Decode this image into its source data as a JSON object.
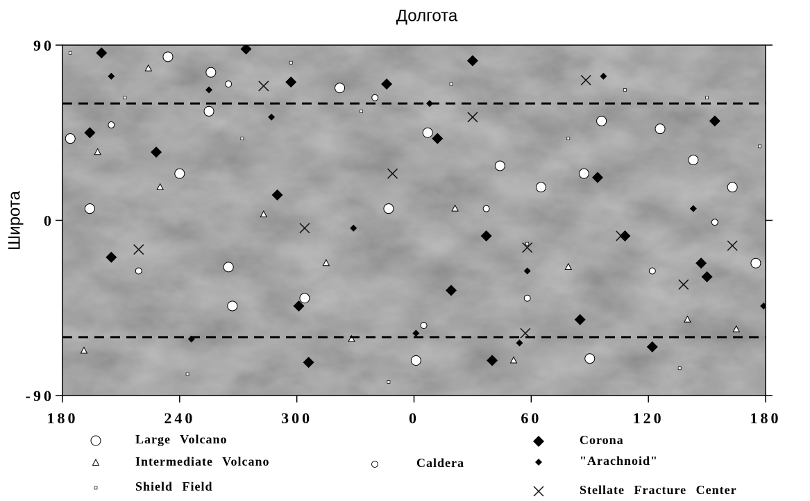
{
  "chart_data": {
    "type": "scatter",
    "title": "Долгота",
    "y_label": "Широта",
    "xlim": [
      180,
      540
    ],
    "xticks": [
      180,
      240,
      300,
      {
        "value": 360,
        "label": "0"
      },
      {
        "value": 420,
        "label": "60"
      },
      {
        "value": 480,
        "label": "120"
      },
      {
        "value": 540,
        "label": "180"
      }
    ],
    "ylim": [
      -90,
      90
    ],
    "yticks": [
      -90,
      0,
      90
    ],
    "hlines": [
      60,
      -60
    ],
    "series": [
      {
        "name": "Large Volcano",
        "marker": "circle",
        "color": "#ffffff",
        "x": [
          234,
          256,
          322,
          255,
          184,
          194,
          240,
          265,
          304,
          347,
          367,
          404,
          425,
          447,
          456,
          486,
          503,
          523,
          535,
          361,
          450,
          267
        ],
        "y": [
          84,
          76,
          68,
          56,
          42,
          6,
          24,
          -24,
          -40,
          6,
          45,
          28,
          17,
          24,
          51,
          47,
          31,
          17,
          -22,
          -72,
          -71,
          -44
        ]
      },
      {
        "name": "Intermediate Volcano",
        "marker": "triangle",
        "color": "#ffffff",
        "x": [
          224,
          198,
          230,
          283,
          315,
          328,
          381,
          411,
          439,
          500,
          525,
          191
        ],
        "y": [
          78,
          35,
          17,
          3,
          -22,
          -61,
          6,
          -72,
          -24,
          -51,
          -56,
          -67
        ]
      },
      {
        "name": "Shield Field",
        "marker": "square",
        "color": "#ffffff",
        "x": [
          184,
          212,
          272,
          333,
          379,
          418,
          468,
          510,
          537,
          244,
          347,
          496,
          297,
          439
        ],
        "y": [
          86,
          63,
          42,
          56,
          70,
          -12,
          67,
          63,
          38,
          -79,
          -83,
          -76,
          81,
          42
        ]
      },
      {
        "name": "Caldera",
        "marker": "small-circle",
        "color": "#ffffff",
        "x": [
          205,
          265,
          340,
          397,
          482,
          418,
          219,
          365,
          514
        ],
        "y": [
          49,
          70,
          63,
          6,
          -26,
          -40,
          -26,
          -54,
          -1
        ]
      },
      {
        "name": "Corona",
        "marker": "diamond",
        "color": "#000000",
        "x": [
          200,
          274,
          390,
          297,
          346,
          194,
          228,
          290,
          372,
          454,
          397,
          468,
          507,
          301,
          379,
          445,
          306,
          400,
          482,
          514,
          205,
          510
        ],
        "y": [
          86,
          88,
          82,
          71,
          70,
          45,
          35,
          13,
          42,
          22,
          -8,
          -8,
          -22,
          -44,
          -36,
          -51,
          -73,
          -72,
          -65,
          51,
          -19,
          -29
        ]
      },
      {
        "name": "\"Arachnoid\"",
        "marker": "small-diamond",
        "color": "#000000",
        "x": [
          205,
          255,
          287,
          368,
          457,
          329,
          418,
          503,
          414,
          246,
          361,
          539
        ],
        "y": [
          74,
          67,
          53,
          60,
          74,
          -4,
          -26,
          6,
          -63,
          -61,
          -58,
          -44
        ]
      },
      {
        "name": "Stellate Fracture Center",
        "marker": "x",
        "color": "#111111",
        "x": [
          448,
          390,
          349,
          304,
          418,
          466,
          498,
          523,
          417,
          219,
          283
        ],
        "y": [
          72,
          53,
          24,
          -4,
          -14,
          -8,
          -33,
          -13,
          -58,
          -15,
          69
        ]
      }
    ]
  }
}
